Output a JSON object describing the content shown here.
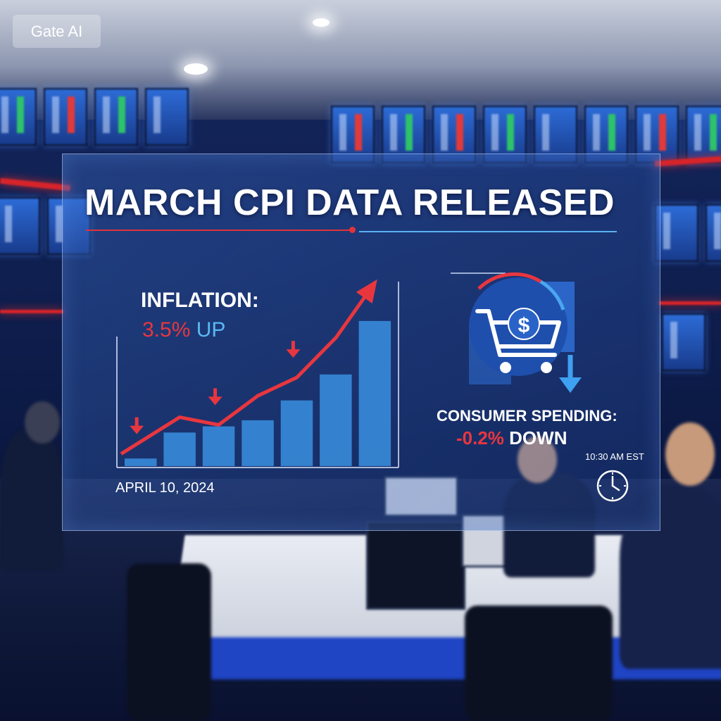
{
  "watermark": "Gate AI",
  "headline": "MARCH CPI DATA RELEASED",
  "inflation": {
    "label": "INFLATION:",
    "value": "3.5%",
    "direction": "UP"
  },
  "date": "APRIL 10, 2024",
  "consumer_spending": {
    "label": "CONSUMER SPENDING:",
    "value": "-0.2%",
    "direction": "DOWN"
  },
  "time": "10:30 AM EST",
  "colors": {
    "accent_red": "#e8363f",
    "accent_blue": "#5ab8f5",
    "bar_blue": "#3a8fe0"
  },
  "icons": [
    "rising-arrow-icon",
    "down-arrow-icon",
    "shopping-cart-dollar-icon",
    "clock-icon"
  ],
  "chart_data": {
    "type": "bar",
    "categories": [
      "",
      "",
      "",
      "",
      "",
      "",
      ""
    ],
    "values": [
      0.5,
      2.2,
      2.6,
      3.0,
      4.3,
      6.0,
      9.5
    ],
    "trend_line": [
      0.8,
      3.2,
      2.7,
      4.6,
      5.8,
      8.4,
      12.0
    ],
    "markers_down_at": [
      0,
      2,
      4
    ],
    "ylim": [
      0,
      13
    ],
    "xlabel": "",
    "ylabel": ""
  }
}
